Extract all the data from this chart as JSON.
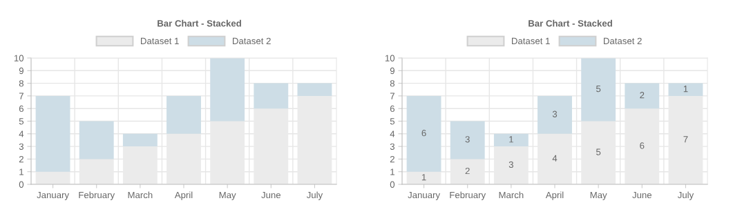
{
  "chart_data": [
    {
      "type": "bar",
      "title": "Bar Chart - Stacked",
      "categories": [
        "January",
        "February",
        "March",
        "April",
        "May",
        "June",
        "July"
      ],
      "stacked": true,
      "ylim": [
        0,
        10
      ],
      "yticks": [
        0,
        1,
        2,
        3,
        4,
        5,
        6,
        7,
        8,
        9,
        10
      ],
      "grid": true,
      "legend": "top",
      "series": [
        {
          "name": "Dataset 1",
          "color": "#ebebeb",
          "values": [
            1,
            2,
            3,
            4,
            5,
            6,
            7
          ]
        },
        {
          "name": "Dataset 2",
          "color": "#cddde6",
          "values": [
            6,
            3,
            1,
            3,
            5,
            2,
            1
          ]
        }
      ]
    },
    {
      "type": "bar",
      "title": "Bar Chart - Stacked",
      "categories": [
        "January",
        "February",
        "March",
        "April",
        "May",
        "June",
        "July"
      ],
      "stacked": true,
      "ylim": [
        0,
        10
      ],
      "yticks": [
        0,
        1,
        2,
        3,
        4,
        5,
        6,
        7,
        8,
        9,
        10
      ],
      "grid": true,
      "legend": "top",
      "data_labels": true,
      "series": [
        {
          "name": "Dataset 1",
          "color": "#ebebeb",
          "values": [
            1,
            2,
            3,
            4,
            5,
            6,
            7
          ]
        },
        {
          "name": "Dataset 2",
          "color": "#cddde6",
          "values": [
            6,
            3,
            1,
            3,
            5,
            2,
            1
          ]
        }
      ]
    }
  ]
}
